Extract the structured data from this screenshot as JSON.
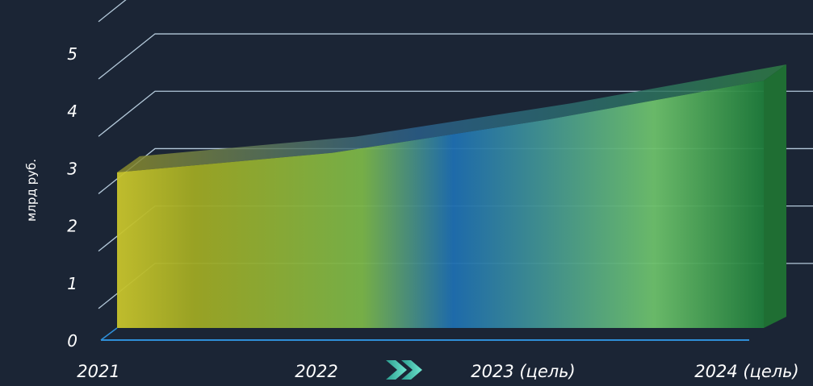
{
  "chart_data": {
    "type": "area",
    "ylabel": "млрд руб.",
    "categories": [
      "2021",
      "2022",
      "2023 (цель)",
      "2024 (цель)"
    ],
    "values": [
      2.8,
      3.15,
      3.75,
      4.45
    ],
    "yticks": [
      "0",
      "1",
      "2",
      "3",
      "4",
      "5"
    ],
    "ylim": [
      0,
      5.6
    ],
    "grid": true,
    "style": "3d",
    "colors": {
      "background": "#1b2535",
      "gridline": "#cfe6f7",
      "baseline": "#2f8fd8",
      "gradient": [
        "#c9c42e",
        "#9da923",
        "#78b548",
        "#1e6fb2",
        "#6fc26c",
        "#1e7b3a"
      ],
      "arrow": [
        "#2a9d8f",
        "#5ee0c8"
      ]
    },
    "arrow_icon": "double-chevron-right-icon"
  }
}
